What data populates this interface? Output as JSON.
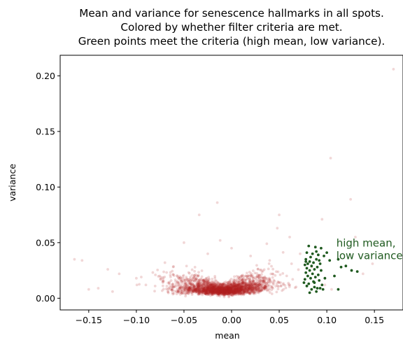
{
  "chart_data": {
    "type": "scatter",
    "title": [
      "Mean and variance for senescence hallmarks in all spots.",
      "Colored by whether filter criteria are met.",
      "Green points meet the criteria (high mean, low variance)."
    ],
    "xlabel": "mean",
    "ylabel": "variance",
    "xlim": [
      -0.18,
      0.18
    ],
    "ylim": [
      -0.0105,
      0.2185
    ],
    "xticks": [
      -0.15,
      -0.1,
      -0.05,
      0.0,
      0.05,
      0.1,
      0.15
    ],
    "xtick_labels": [
      "−0.15",
      "−0.10",
      "−0.05",
      "0.00",
      "0.05",
      "0.10",
      "0.15"
    ],
    "yticks": [
      0.0,
      0.05,
      0.1,
      0.15,
      0.2
    ],
    "ytick_labels": [
      "0.00",
      "0.05",
      "0.10",
      "0.15",
      "0.20"
    ],
    "grid": false,
    "annotation": {
      "lines": [
        "high mean,",
        "low variance"
      ],
      "x": 0.11,
      "y": 0.0465,
      "color": "#1f5a1f"
    },
    "series": [
      {
        "color": "#b22222",
        "opacity": 0.18,
        "points": [
          [
            0.17,
            0.206
          ],
          [
            0.104,
            0.126
          ],
          [
            0.05,
            0.075
          ],
          [
            -0.015,
            0.086
          ],
          [
            -0.034,
            0.075
          ],
          [
            0.125,
            0.089
          ],
          [
            0.095,
            0.071
          ],
          [
            -0.165,
            0.035
          ],
          [
            -0.157,
            0.034
          ],
          [
            0.048,
            0.063
          ],
          [
            0.037,
            0.049
          ],
          [
            -0.012,
            0.052
          ],
          [
            0.072,
            0.04
          ],
          [
            0.13,
            0.055
          ],
          [
            -0.05,
            0.05
          ],
          [
            0.0,
            0.045
          ],
          [
            0.061,
            0.055
          ],
          [
            -0.13,
            0.026
          ],
          [
            -0.118,
            0.022
          ],
          [
            0.148,
            0.031
          ],
          [
            0.138,
            0.022
          ],
          [
            -0.1,
            0.018
          ],
          [
            -0.08,
            0.021
          ],
          [
            0.02,
            0.038
          ],
          [
            0.063,
            0.031
          ],
          [
            -0.14,
            0.009
          ],
          [
            -0.125,
            0.006
          ],
          [
            0.084,
            0.028
          ],
          [
            0.098,
            0.012
          ],
          [
            0.105,
            0.008
          ],
          [
            -0.09,
            0.012
          ],
          [
            -0.15,
            0.008
          ],
          [
            -0.07,
            0.032
          ],
          [
            -0.025,
            0.04
          ],
          [
            0.04,
            0.034
          ]
        ],
        "cloud": {
          "count": 2400,
          "mean_center": -0.008,
          "mean_sd": 0.026,
          "variance_base": 0.0045,
          "variance_spread": 0.01,
          "mean_range": [
            -0.12,
            0.076
          ]
        }
      },
      {
        "color": "#1f5a1f",
        "opacity": 1,
        "points": [
          [
            0.081,
            0.047
          ],
          [
            0.088,
            0.046
          ],
          [
            0.079,
            0.041
          ],
          [
            0.085,
            0.04
          ],
          [
            0.091,
            0.039
          ],
          [
            0.083,
            0.037
          ],
          [
            0.078,
            0.035
          ],
          [
            0.089,
            0.035
          ],
          [
            0.092,
            0.034
          ],
          [
            0.082,
            0.033
          ],
          [
            0.086,
            0.032
          ],
          [
            0.08,
            0.031
          ],
          [
            0.093,
            0.031
          ],
          [
            0.077,
            0.03
          ],
          [
            0.084,
            0.029
          ],
          [
            0.09,
            0.028
          ],
          [
            0.079,
            0.027
          ],
          [
            0.087,
            0.026
          ],
          [
            0.082,
            0.025
          ],
          [
            0.094,
            0.025
          ],
          [
            0.078,
            0.023
          ],
          [
            0.085,
            0.022
          ],
          [
            0.091,
            0.021
          ],
          [
            0.08,
            0.02
          ],
          [
            0.088,
            0.019
          ],
          [
            0.083,
            0.018
          ],
          [
            0.077,
            0.017
          ],
          [
            0.092,
            0.016
          ],
          [
            0.086,
            0.015
          ],
          [
            0.081,
            0.013
          ],
          [
            0.095,
            0.012
          ],
          [
            0.079,
            0.011
          ],
          [
            0.087,
            0.01
          ],
          [
            0.09,
            0.009
          ],
          [
            0.084,
            0.008
          ],
          [
            0.096,
            0.008
          ],
          [
            0.078,
            0.033
          ],
          [
            0.089,
            0.042
          ],
          [
            0.098,
            0.018
          ],
          [
            0.093,
            0.009
          ],
          [
            0.103,
            0.034
          ],
          [
            0.108,
            0.02
          ],
          [
            0.112,
            0.035
          ],
          [
            0.115,
            0.028
          ],
          [
            0.12,
            0.029
          ],
          [
            0.126,
            0.025
          ],
          [
            0.132,
            0.024
          ],
          [
            0.112,
            0.008
          ],
          [
            0.082,
            0.005
          ],
          [
            0.087,
            0.014
          ],
          [
            0.1,
            0.041
          ],
          [
            0.097,
            0.038
          ],
          [
            0.094,
            0.045
          ],
          [
            0.076,
            0.014
          ],
          [
            0.089,
            0.006
          ]
        ]
      }
    ]
  }
}
